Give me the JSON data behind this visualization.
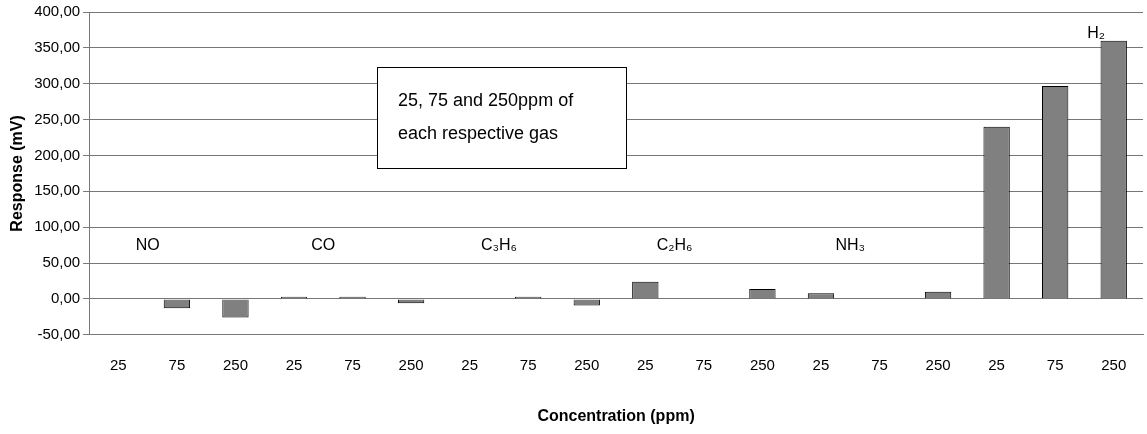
{
  "chart_data": {
    "type": "bar",
    "xlabel": "Concentration (ppm)",
    "ylabel": "Response (mV)",
    "categories": [
      "25",
      "75",
      "250",
      "25",
      "75",
      "250",
      "25",
      "75",
      "250",
      "25",
      "75",
      "250",
      "25",
      "75",
      "250",
      "25",
      "75",
      "250"
    ],
    "values": [
      0,
      -13,
      -26,
      3,
      3,
      -6,
      0,
      3,
      -9,
      24,
      0,
      14,
      8,
      0,
      10,
      240,
      297,
      360
    ],
    "color": "#808080",
    "ylim": [
      -50,
      400
    ],
    "yticks": [
      {
        "value": -50,
        "label": "-50,00"
      },
      {
        "value": 0,
        "label": "0,00"
      },
      {
        "value": 50,
        "label": "50,00"
      },
      {
        "value": 100,
        "label": "100,00"
      },
      {
        "value": 150,
        "label": "150,00"
      },
      {
        "value": 200,
        "label": "200,00"
      },
      {
        "value": 250,
        "label": "250,00"
      },
      {
        "value": 300,
        "label": "300,00"
      },
      {
        "value": 350,
        "label": "350,00"
      },
      {
        "value": 400,
        "label": "400,00"
      }
    ],
    "grid": "y",
    "annotations": [
      "NO",
      "CO",
      "C₃H₆",
      "C₂H₆",
      "NH₃",
      "H₂",
      "25, 75 and 250ppm of each respective gas"
    ]
  }
}
